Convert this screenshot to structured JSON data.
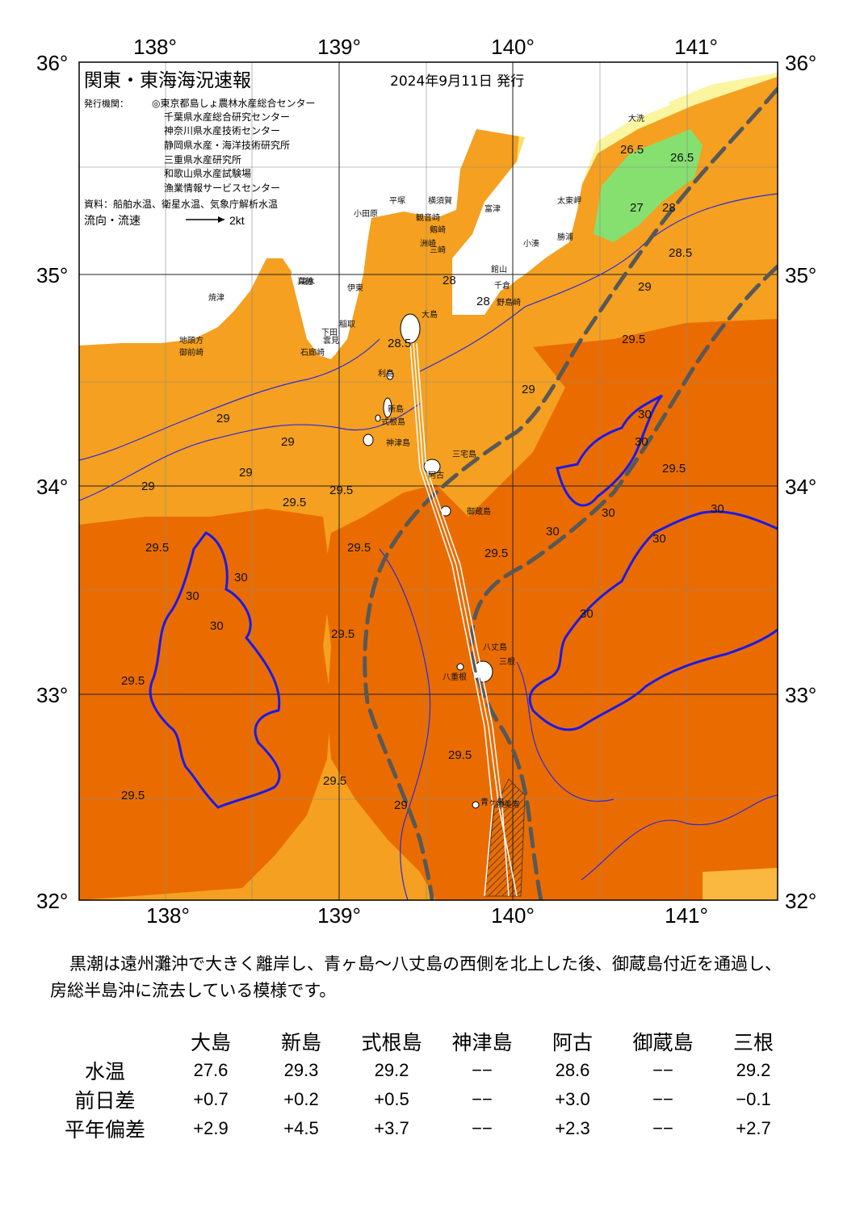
{
  "header": {
    "title": "関東・東海海況速報",
    "date": "2024年9月11日 発行",
    "agencies_label": "発行機関：",
    "agencies": [
      "◎東京都島しょ農林水産総合センター",
      "千葉県水産総合研究センター",
      "神奈川県水産技術センター",
      "静岡県水産・海洋技術研究所",
      "三重県水産研究所",
      "和歌山県水産試験場",
      "漁業情報サービスセンター"
    ],
    "source": "資料：船舶水温、衛星水温、気象庁解析水温",
    "flow_label": "流向・流速",
    "flow_unit": "2kt"
  },
  "axes": {
    "lon_labels": [
      "138°",
      "139°",
      "140°",
      "141°"
    ],
    "lat_labels": [
      "36°",
      "35°",
      "34°",
      "33°",
      "32°"
    ]
  },
  "map_data": {
    "lon_range": [
      137.5,
      141.5
    ],
    "lat_range": [
      32,
      36
    ],
    "colors": {
      "sea_warm": "#f5a020",
      "sea_hot": "#ea6c00",
      "sea_mid": "#fab840",
      "cool_yellow": "#f5e06a",
      "cool_lightyellow": "#fbf5a0",
      "cool_green": "#86e070",
      "land": "#ffffff",
      "contour30": "#1a1ae8",
      "kuroshio_axis": "#585858"
    },
    "place_names": [
      "大洗",
      "太東岬",
      "小湊",
      "野島崎",
      "勝浦",
      "富津",
      "平塚",
      "横須賀",
      "観音崎",
      "剱崎",
      "三崎",
      "洲崎",
      "館山",
      "千倉",
      "小田原",
      "真鶴",
      "伊東",
      "稲取",
      "下田",
      "石廊崎",
      "雲見",
      "御前崎",
      "地頭方",
      "焼津",
      "清水",
      "大島",
      "利島",
      "新島",
      "式根島",
      "神津島",
      "三宅島",
      "阿古",
      "御蔵島",
      "八丈島",
      "八重根",
      "三根",
      "青ヶ島",
      "須美寿"
    ],
    "isotherm_labels": [
      "26.5",
      "26.5",
      "27",
      "28",
      "28",
      "28",
      "28.5",
      "28.5",
      "29",
      "29",
      "29",
      "29",
      "29",
      "29",
      "29",
      "29.5",
      "29.5",
      "29.5",
      "29.5",
      "29.5",
      "29.5",
      "29.5",
      "29.5",
      "29.5",
      "29.5",
      "29.5",
      "29.5",
      "30",
      "30",
      "30",
      "30",
      "30",
      "30",
      "30",
      "30",
      "30",
      "30"
    ]
  },
  "summary": "黒潮は遠州灘沖で大きく離岸し、青ヶ島～八丈島の西側を北上した後、御蔵島付近を通過し、房総半島沖に流去している模様です。",
  "table": {
    "columns": [
      "大島",
      "新島",
      "式根島",
      "神津島",
      "阿古",
      "御蔵島",
      "三根"
    ],
    "rows": [
      {
        "label": "水温",
        "values": [
          "27.6",
          "29.3",
          "29.2",
          "−−",
          "28.6",
          "−−",
          "29.2"
        ]
      },
      {
        "label": "前日差",
        "values": [
          "+0.7",
          "+0.2",
          "+0.5",
          "−−",
          "+3.0",
          "−−",
          "−0.1"
        ]
      },
      {
        "label": "平年偏差",
        "values": [
          "+2.9",
          "+4.5",
          "+3.7",
          "−−",
          "+2.3",
          "−−",
          "+2.7"
        ]
      }
    ]
  }
}
